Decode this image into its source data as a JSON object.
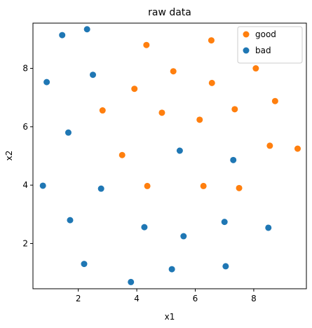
{
  "chart_data": {
    "type": "scatter",
    "title": "raw data",
    "xlabel": "x1",
    "ylabel": "x2",
    "xlim": [
      0.45,
      9.8
    ],
    "ylim": [
      0.45,
      9.55
    ],
    "xticks": [
      2,
      4,
      6,
      8
    ],
    "yticks": [
      2,
      4,
      6,
      8
    ],
    "grid": false,
    "legend_position": "top-right",
    "series": [
      {
        "name": "good",
        "color": "#ff7f0e",
        "points": [
          [
            4.33,
            8.8
          ],
          [
            6.55,
            8.96
          ],
          [
            5.25,
            7.9
          ],
          [
            8.07,
            8.0
          ],
          [
            3.92,
            7.3
          ],
          [
            6.57,
            7.5
          ],
          [
            2.83,
            6.56
          ],
          [
            4.86,
            6.48
          ],
          [
            7.35,
            6.6
          ],
          [
            8.73,
            6.88
          ],
          [
            6.15,
            6.24
          ],
          [
            3.5,
            5.03
          ],
          [
            8.55,
            5.35
          ],
          [
            9.5,
            5.25
          ],
          [
            4.36,
            3.97
          ],
          [
            6.28,
            3.97
          ],
          [
            7.5,
            3.9
          ]
        ]
      },
      {
        "name": "bad",
        "color": "#1f77b4",
        "points": [
          [
            1.45,
            9.14
          ],
          [
            2.3,
            9.34
          ],
          [
            0.92,
            7.53
          ],
          [
            2.5,
            7.78
          ],
          [
            1.66,
            5.8
          ],
          [
            5.47,
            5.18
          ],
          [
            7.3,
            4.86
          ],
          [
            0.79,
            3.98
          ],
          [
            2.78,
            3.88
          ],
          [
            1.72,
            2.8
          ],
          [
            4.26,
            2.56
          ],
          [
            5.6,
            2.25
          ],
          [
            7.0,
            2.74
          ],
          [
            8.5,
            2.54
          ],
          [
            2.2,
            1.3
          ],
          [
            5.2,
            1.12
          ],
          [
            7.04,
            1.22
          ],
          [
            3.8,
            0.68
          ]
        ]
      }
    ]
  }
}
